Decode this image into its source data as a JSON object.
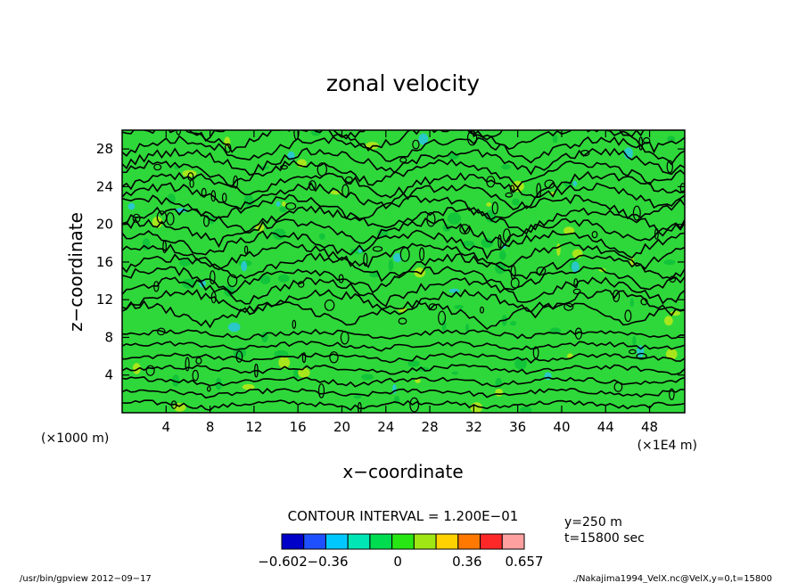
{
  "chart_data": {
    "type": "heatmap",
    "title": "zonal velocity",
    "xlabel": "x−coordinate",
    "ylabel": "z−coordinate",
    "x_unit_label": "(×1E4 m)",
    "y_unit_label": "(×1000 m)",
    "x_ticks": [
      "4",
      "8",
      "12",
      "16",
      "20",
      "24",
      "28",
      "32",
      "36",
      "40",
      "44",
      "48"
    ],
    "y_ticks": [
      "4",
      "8",
      "12",
      "16",
      "20",
      "24",
      "28"
    ],
    "xlim": [
      0,
      51.2
    ],
    "ylim": [
      0,
      30
    ],
    "contour_interval_text": "CONTOUR INTERVAL = 1.200E−01",
    "info_lines": [
      "y=250 m",
      "t=15800 sec"
    ],
    "colorbar": {
      "colors": [
        "#0000c8",
        "#1e50ff",
        "#00c8ff",
        "#00e6b4",
        "#00dc50",
        "#28e614",
        "#a0e614",
        "#ffd200",
        "#ff7800",
        "#ff2828",
        "#ffa0a0"
      ],
      "labels": [
        {
          "text": "−0.602",
          "value": -0.602
        },
        {
          "text": "−0.36",
          "value": -0.36
        },
        {
          "text": "0",
          "value": 0
        },
        {
          "text": "0.36",
          "value": 0.36
        },
        {
          "text": "0.657",
          "value": 0.657
        }
      ],
      "range": [
        -0.602,
        0.657
      ]
    },
    "dominant_color": "#2fd83a",
    "dark_patch_color": "#12c43a",
    "cyan_patch_color": "#2ac8c8",
    "yellow_patch_color": "#a8e61c",
    "contour_color": "#000000"
  },
  "footer": {
    "left": "/usr/bin/gpview   2012−09−17",
    "right": "./Nakajima1994_VelX.nc@VelX,y=0,t=15800"
  }
}
